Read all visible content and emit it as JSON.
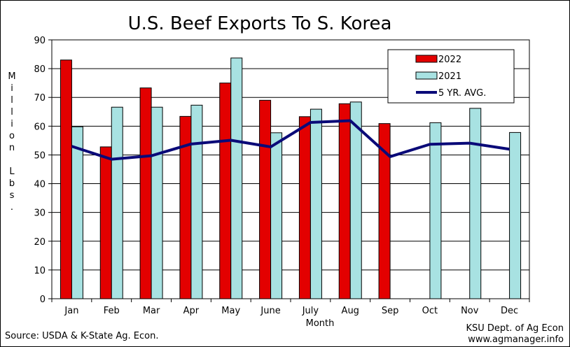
{
  "chart_data": {
    "type": "bar",
    "title": "U.S. Beef Exports To S. Korea",
    "xlabel": "Month",
    "ylabel": "Million Lbs.",
    "ylim": [
      0,
      90
    ],
    "yticks": [
      0,
      10,
      20,
      30,
      40,
      50,
      60,
      70,
      80,
      90
    ],
    "grid": true,
    "legend_position": "top-right",
    "categories": [
      "Jan",
      "Feb",
      "Mar",
      "Apr",
      "May",
      "June",
      "July",
      "Aug",
      "Sep",
      "Oct",
      "Nov",
      "Dec"
    ],
    "series": [
      {
        "name": "2022",
        "type": "bar",
        "color": "#e30000",
        "values": [
          83.0,
          52.8,
          73.3,
          63.4,
          75.0,
          69.0,
          63.3,
          67.8,
          60.9,
          null,
          null,
          null
        ]
      },
      {
        "name": "2021",
        "type": "bar",
        "color": "#a8e2e2",
        "values": [
          59.8,
          66.6,
          66.6,
          67.3,
          83.7,
          57.7,
          65.9,
          68.4,
          null,
          61.2,
          66.2,
          57.8
        ]
      },
      {
        "name": "5 YR. AVG.",
        "type": "line",
        "color": "#0a0a78",
        "values": [
          53.0,
          48.5,
          49.7,
          53.8,
          55.1,
          52.8,
          61.3,
          61.9,
          49.4,
          53.7,
          54.1,
          52.0
        ]
      }
    ]
  },
  "footer": {
    "source": "Source:  USDA & K-State Ag. Econ.",
    "credit_line1": "KSU Dept. of Ag Econ",
    "credit_line2": "www.agmanager.info"
  }
}
